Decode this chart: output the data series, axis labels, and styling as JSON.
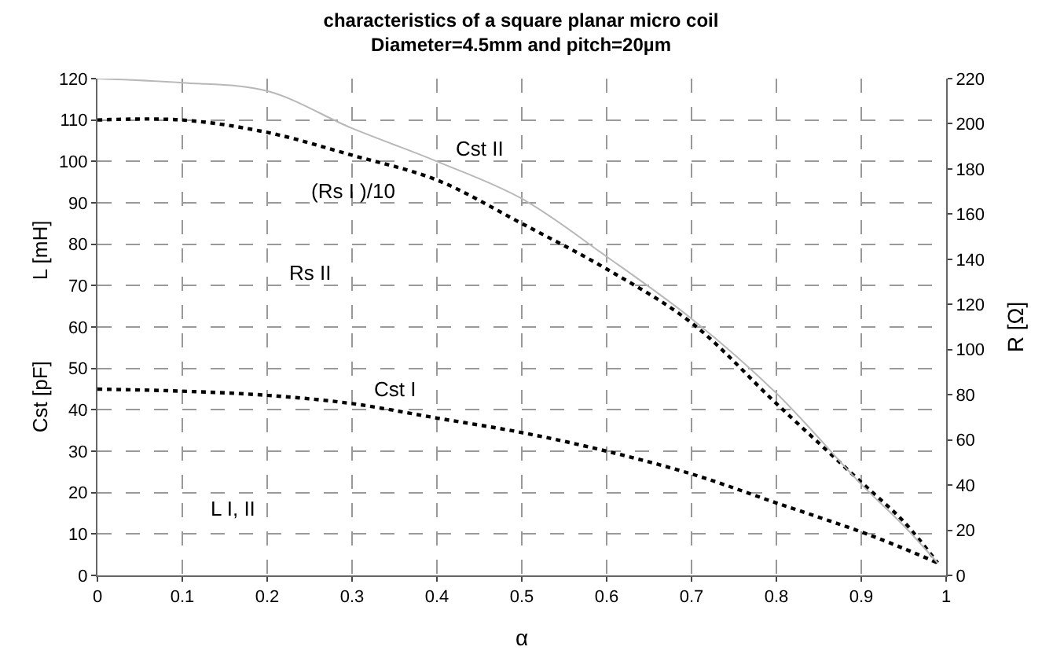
{
  "chart_data": {
    "type": "line",
    "title": "characteristics of a square planar micro coil",
    "subtitle": "Diameter=4.5mm and pitch=20µm",
    "xlabel": "α",
    "ylabel": "L [mH]",
    "y2label": "R [Ω]",
    "x": [
      0,
      0.1,
      0.2,
      0.3,
      0.4,
      0.5,
      0.6,
      0.7,
      0.8,
      0.9,
      0.95,
      0.99
    ],
    "series": [
      {
        "color": "#000000",
        "line_style": "dotted",
        "values": [
          110,
          110,
          107,
          101.5,
          95.5,
          85,
          74,
          61,
          41.5,
          22.5,
          13,
          3
        ]
      },
      {
        "color": "#000000",
        "line_style": "dotted",
        "values": [
          45,
          44.5,
          43.5,
          41.5,
          38,
          34.5,
          30,
          24.5,
          17.5,
          10.5,
          6.5,
          3
        ]
      },
      {
        "color": "#b8b8b8",
        "line_style": "solid",
        "values": [
          120,
          119,
          117,
          108,
          100,
          91,
          77,
          62,
          44,
          22,
          12,
          3
        ]
      }
    ],
    "xlim": [
      0,
      1
    ],
    "xticks": [
      0,
      0.1,
      0.2,
      0.3,
      0.4,
      0.5,
      0.6,
      0.7,
      0.8,
      0.9,
      1
    ],
    "ylim": [
      0,
      120
    ],
    "yticks": [
      0,
      10,
      20,
      30,
      40,
      50,
      60,
      70,
      80,
      90,
      100,
      110,
      120
    ],
    "y2lim": [
      0,
      220
    ],
    "y2ticks": [
      0,
      20,
      40,
      60,
      80,
      100,
      120,
      140,
      160,
      180,
      200,
      220
    ],
    "annotations": [
      "Cst II",
      "(Rs I )/10",
      "Rs II",
      "Cst I",
      "L I, II",
      "Cst [pF]"
    ],
    "grid": true,
    "marker": "none"
  }
}
